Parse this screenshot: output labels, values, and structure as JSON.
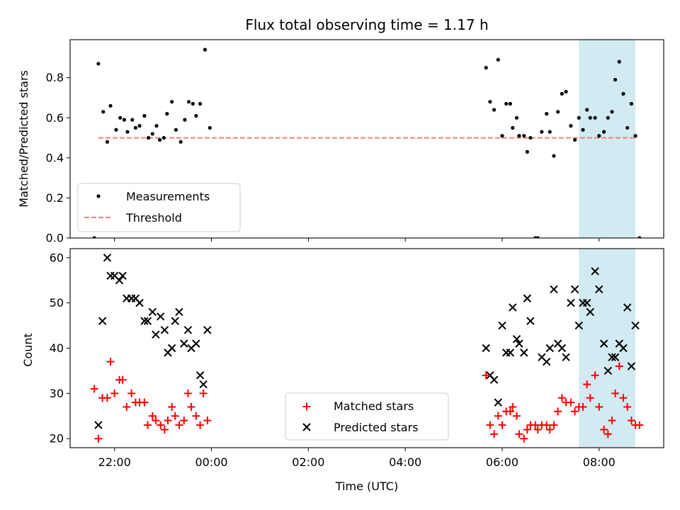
{
  "title": "Flux total observing time = 1.17 h",
  "xlabel": "Time (UTC)",
  "colors": {
    "measurement": "#000000",
    "threshold": "#f08080",
    "matched": "#ff0000",
    "predicted": "#000000",
    "highlight": "#add8e6"
  },
  "x_ticks": [
    "22:00",
    "00:00",
    "02:00",
    "04:00",
    "06:00",
    "08:00"
  ],
  "chart_data": [
    {
      "type": "scatter",
      "panel": "top",
      "ylabel": "Matched/Predicted stars",
      "ylim": [
        0,
        0.99
      ],
      "xlim": [
        "21:05",
        "09:20"
      ],
      "yticks": [
        "0.0",
        "0.2",
        "0.4",
        "0.6",
        "0.8"
      ],
      "highlight_span": [
        "07:35",
        "08:45"
      ],
      "legend_position": "lower-left",
      "series": [
        {
          "name": "Measurements",
          "points": [
            [
              "21:35",
              0.0
            ],
            [
              "21:40",
              0.87
            ],
            [
              "21:46",
              0.63
            ],
            [
              "21:51",
              0.48
            ],
            [
              "21:55",
              0.66
            ],
            [
              "22:02",
              0.54
            ],
            [
              "22:07",
              0.6
            ],
            [
              "22:12",
              0.59
            ],
            [
              "22:16",
              0.53
            ],
            [
              "22:22",
              0.59
            ],
            [
              "22:26",
              0.55
            ],
            [
              "22:31",
              0.56
            ],
            [
              "22:37",
              0.61
            ],
            [
              "22:42",
              0.5
            ],
            [
              "22:47",
              0.52
            ],
            [
              "22:52",
              0.56
            ],
            [
              "22:56",
              0.49
            ],
            [
              "23:01",
              0.5
            ],
            [
              "23:05",
              0.62
            ],
            [
              "23:11",
              0.68
            ],
            [
              "23:16",
              0.54
            ],
            [
              "23:22",
              0.48
            ],
            [
              "23:27",
              0.59
            ],
            [
              "23:32",
              0.68
            ],
            [
              "23:37",
              0.67
            ],
            [
              "23:41",
              0.61
            ],
            [
              "23:46",
              0.67
            ],
            [
              "23:52",
              0.94
            ],
            [
              "23:58",
              0.55
            ],
            [
              "05:40",
              0.85
            ],
            [
              "05:45",
              0.68
            ],
            [
              "05:50",
              0.64
            ],
            [
              "05:55",
              0.89
            ],
            [
              "06:00",
              0.51
            ],
            [
              "06:05",
              0.67
            ],
            [
              "06:10",
              0.67
            ],
            [
              "06:13",
              0.55
            ],
            [
              "06:18",
              0.6
            ],
            [
              "06:21",
              0.51
            ],
            [
              "06:27",
              0.51
            ],
            [
              "06:31",
              0.43
            ],
            [
              "06:35",
              0.5
            ],
            [
              "06:41",
              0.0
            ],
            [
              "06:44",
              0.0
            ],
            [
              "06:49",
              0.53
            ],
            [
              "06:55",
              0.62
            ],
            [
              "06:59",
              0.53
            ],
            [
              "07:04",
              0.41
            ],
            [
              "07:09",
              0.63
            ],
            [
              "07:14",
              0.72
            ],
            [
              "07:19",
              0.73
            ],
            [
              "07:25",
              0.56
            ],
            [
              "07:30",
              0.49
            ],
            [
              "07:35",
              0.6
            ],
            [
              "07:40",
              0.54
            ],
            [
              "07:45",
              0.64
            ],
            [
              "07:49",
              0.6
            ],
            [
              "07:55",
              0.6
            ],
            [
              "08:00",
              0.51
            ],
            [
              "08:06",
              0.53
            ],
            [
              "08:11",
              0.6
            ],
            [
              "08:16",
              0.63
            ],
            [
              "08:20",
              0.79
            ],
            [
              "08:25",
              0.88
            ],
            [
              "08:30",
              0.72
            ],
            [
              "08:35",
              0.55
            ],
            [
              "08:40",
              0.67
            ],
            [
              "08:45",
              0.51
            ],
            [
              "08:50",
              0.0
            ]
          ]
        },
        {
          "name": "Threshold",
          "points": [
            [
              "21:40",
              0.5
            ],
            [
              "08:47",
              0.5
            ]
          ]
        }
      ]
    },
    {
      "type": "scatter",
      "panel": "bottom",
      "ylabel": "Count",
      "ylim": [
        18,
        62
      ],
      "xlim": [
        "21:05",
        "09:20"
      ],
      "yticks": [
        "20",
        "30",
        "40",
        "50",
        "60"
      ],
      "highlight_span": [
        "07:35",
        "08:45"
      ],
      "legend_position": "lower-center",
      "series": [
        {
          "name": "Matched stars",
          "points": [
            [
              "21:35",
              31
            ],
            [
              "21:40",
              20
            ],
            [
              "21:45",
              29
            ],
            [
              "21:51",
              29
            ],
            [
              "21:55",
              37
            ],
            [
              "22:00",
              30
            ],
            [
              "22:06",
              33
            ],
            [
              "22:10",
              33
            ],
            [
              "22:15",
              27
            ],
            [
              "22:21",
              30
            ],
            [
              "22:26",
              28
            ],
            [
              "22:31",
              28
            ],
            [
              "22:37",
              28
            ],
            [
              "22:41",
              23
            ],
            [
              "22:47",
              25
            ],
            [
              "22:51",
              24
            ],
            [
              "22:57",
              23
            ],
            [
              "23:02",
              22
            ],
            [
              "23:06",
              24
            ],
            [
              "23:11",
              27
            ],
            [
              "23:15",
              25
            ],
            [
              "23:20",
              23
            ],
            [
              "23:26",
              24
            ],
            [
              "23:31",
              30
            ],
            [
              "23:35",
              27
            ],
            [
              "23:41",
              25
            ],
            [
              "23:46",
              23
            ],
            [
              "23:50",
              30
            ],
            [
              "23:55",
              24
            ],
            [
              "05:40",
              34
            ],
            [
              "05:45",
              23
            ],
            [
              "05:50",
              21
            ],
            [
              "05:55",
              25
            ],
            [
              "06:00",
              23
            ],
            [
              "06:05",
              26
            ],
            [
              "06:10",
              26
            ],
            [
              "06:13",
              27
            ],
            [
              "06:18",
              25
            ],
            [
              "06:21",
              21
            ],
            [
              "06:27",
              20
            ],
            [
              "06:31",
              22
            ],
            [
              "06:35",
              23
            ],
            [
              "06:41",
              23
            ],
            [
              "06:44",
              22
            ],
            [
              "06:49",
              23
            ],
            [
              "06:55",
              23
            ],
            [
              "06:59",
              22
            ],
            [
              "07:04",
              23
            ],
            [
              "07:09",
              26
            ],
            [
              "07:14",
              29
            ],
            [
              "07:19",
              28
            ],
            [
              "07:25",
              28
            ],
            [
              "07:30",
              26
            ],
            [
              "07:35",
              27
            ],
            [
              "07:40",
              27
            ],
            [
              "07:45",
              32
            ],
            [
              "07:49",
              29
            ],
            [
              "07:55",
              34
            ],
            [
              "08:00",
              27
            ],
            [
              "08:06",
              22
            ],
            [
              "08:11",
              21
            ],
            [
              "08:16",
              24
            ],
            [
              "08:20",
              30
            ],
            [
              "08:25",
              36
            ],
            [
              "08:30",
              29
            ],
            [
              "08:35",
              27
            ],
            [
              "08:40",
              24
            ],
            [
              "08:45",
              23
            ],
            [
              "08:50",
              23
            ]
          ]
        },
        {
          "name": "Predicted stars",
          "points": [
            [
              "21:40",
              23
            ],
            [
              "21:45",
              46
            ],
            [
              "21:51",
              60
            ],
            [
              "21:55",
              56
            ],
            [
              "22:00",
              56
            ],
            [
              "22:06",
              55
            ],
            [
              "22:10",
              56
            ],
            [
              "22:15",
              51
            ],
            [
              "22:21",
              51
            ],
            [
              "22:26",
              51
            ],
            [
              "22:31",
              50
            ],
            [
              "22:37",
              46
            ],
            [
              "22:41",
              46
            ],
            [
              "22:47",
              48
            ],
            [
              "22:51",
              43
            ],
            [
              "22:57",
              47
            ],
            [
              "23:02",
              44
            ],
            [
              "23:06",
              39
            ],
            [
              "23:11",
              40
            ],
            [
              "23:15",
              46
            ],
            [
              "23:20",
              48
            ],
            [
              "23:26",
              41
            ],
            [
              "23:31",
              44
            ],
            [
              "23:35",
              40
            ],
            [
              "23:41",
              41
            ],
            [
              "23:46",
              34
            ],
            [
              "23:50",
              32
            ],
            [
              "23:55",
              44
            ],
            [
              "05:40",
              40
            ],
            [
              "05:45",
              34
            ],
            [
              "05:50",
              33
            ],
            [
              "05:55",
              28
            ],
            [
              "06:00",
              45
            ],
            [
              "06:05",
              39
            ],
            [
              "06:10",
              39
            ],
            [
              "06:13",
              49
            ],
            [
              "06:18",
              42
            ],
            [
              "06:21",
              41
            ],
            [
              "06:27",
              39
            ],
            [
              "06:31",
              51
            ],
            [
              "06:35",
              46
            ],
            [
              "06:49",
              38
            ],
            [
              "06:55",
              37
            ],
            [
              "06:59",
              40
            ],
            [
              "07:04",
              53
            ],
            [
              "07:09",
              41
            ],
            [
              "07:14",
              40
            ],
            [
              "07:19",
              38
            ],
            [
              "07:25",
              50
            ],
            [
              "07:30",
              53
            ],
            [
              "07:35",
              45
            ],
            [
              "07:40",
              50
            ],
            [
              "07:45",
              50
            ],
            [
              "07:49",
              48
            ],
            [
              "07:55",
              57
            ],
            [
              "08:00",
              53
            ],
            [
              "08:06",
              41
            ],
            [
              "08:11",
              35
            ],
            [
              "08:16",
              38
            ],
            [
              "08:20",
              38
            ],
            [
              "08:25",
              41
            ],
            [
              "08:30",
              40
            ],
            [
              "08:35",
              49
            ],
            [
              "08:40",
              36
            ],
            [
              "08:45",
              45
            ]
          ]
        }
      ]
    }
  ]
}
